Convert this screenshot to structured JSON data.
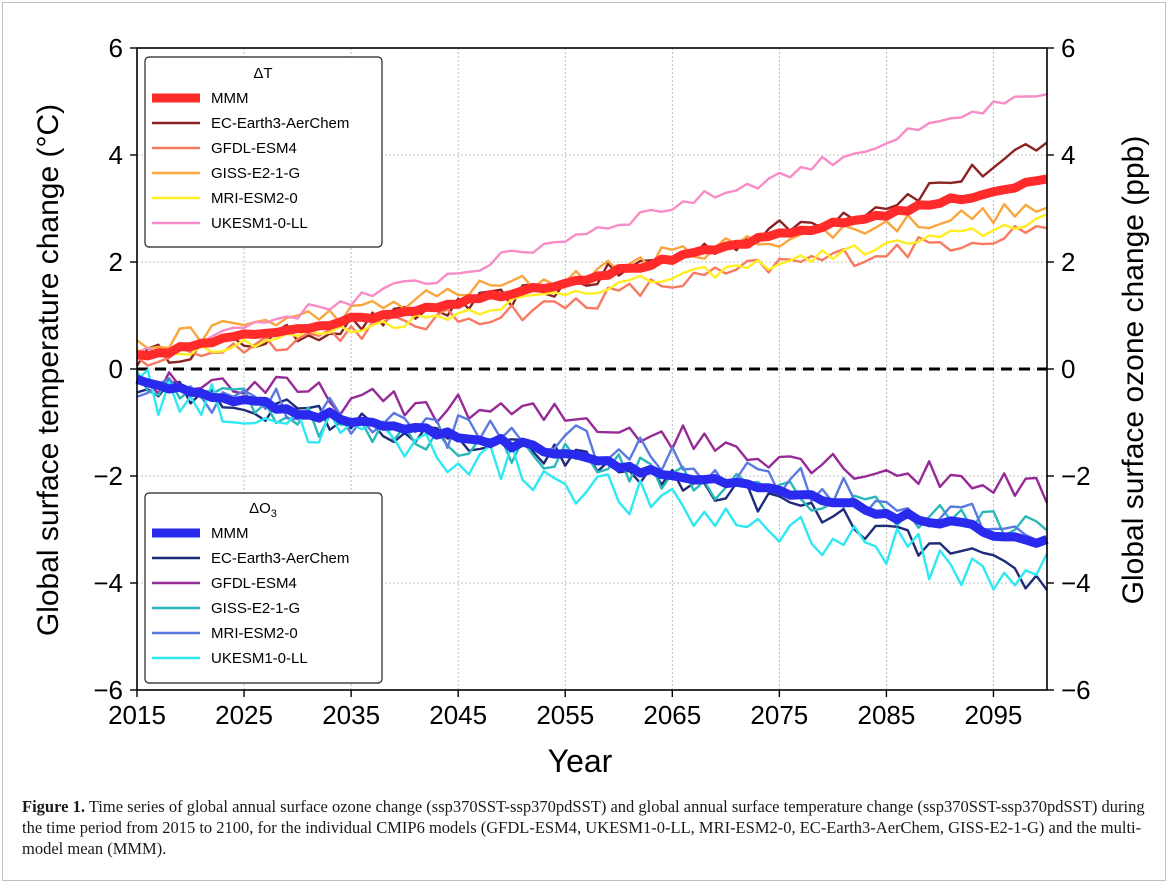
{
  "caption": {
    "label": "Figure 1.",
    "text": "Time series of global annual surface ozone change (ssp370SST-ssp370pdSST) and global annual surface temperature change (ssp370SST-ssp370pdSST) during the time period from 2015 to 2100, for the individual CMIP6 models (GFDL-ESM4, UKESM1-0-LL, MRI-ESM2-0, EC-Earth3-AerChem, GISS-E2-1-G) and the multi-model mean (MMM)."
  },
  "chart_data": {
    "type": "line",
    "xlabel": "Year",
    "ylabel_left": "Global surface temperature change (°C)",
    "ylabel_right": "Global surface ozone change (ppb)",
    "xlim": [
      2015,
      2100
    ],
    "ylim": [
      -6,
      6
    ],
    "x_ticks": [
      2015,
      2025,
      2035,
      2045,
      2055,
      2065,
      2075,
      2085,
      2095
    ],
    "y_ticks": [
      -6,
      -4,
      -2,
      0,
      2,
      4,
      6
    ],
    "grid": true,
    "zero_line": "dashed",
    "legend_temp": {
      "title": "ΔT",
      "placement": "upper-left",
      "series": [
        {
          "name": "MMM",
          "color": "#ff2a2a",
          "width": 9
        },
        {
          "name": "EC-Earth3-AerChem",
          "color": "#8b2323",
          "width": 2.4
        },
        {
          "name": "GFDL-ESM4",
          "color": "#f77a62",
          "width": 2.4
        },
        {
          "name": "GISS-E2-1-G",
          "color": "#f9a63c",
          "width": 2.4
        },
        {
          "name": "MRI-ESM2-0",
          "color": "#ffee22",
          "width": 2.4
        },
        {
          "name": "UKESM1-0-LL",
          "color": "#f78cc6",
          "width": 2.4
        }
      ]
    },
    "legend_ozone": {
      "title_main": "ΔO",
      "title_sub": "3",
      "placement": "lower-left",
      "series": [
        {
          "name": "MMM",
          "color": "#2a2aee",
          "width": 9
        },
        {
          "name": "EC-Earth3-AerChem",
          "color": "#1f2a78",
          "width": 2.4
        },
        {
          "name": "GFDL-ESM4",
          "color": "#962a96",
          "width": 2.4
        },
        {
          "name": "GISS-E2-1-G",
          "color": "#2ab8b8",
          "width": 2.4
        },
        {
          "name": "MRI-ESM2-0",
          "color": "#5a7ae0",
          "width": 2.4
        },
        {
          "name": "UKESM1-0-LL",
          "color": "#2ee8f2",
          "width": 2.4
        }
      ]
    },
    "series_anchors": {
      "temp": {
        "MMM": [
          [
            2015,
            0.22
          ],
          [
            2025,
            0.62
          ],
          [
            2035,
            0.92
          ],
          [
            2045,
            1.25
          ],
          [
            2055,
            1.62
          ],
          [
            2065,
            2.05
          ],
          [
            2075,
            2.5
          ],
          [
            2085,
            2.9
          ],
          [
            2095,
            3.32
          ],
          [
            2100,
            3.55
          ]
        ],
        "EC-Earth3-AerChem": [
          [
            2015,
            0.22
          ],
          [
            2025,
            0.5
          ],
          [
            2035,
            0.82
          ],
          [
            2045,
            1.15
          ],
          [
            2055,
            1.55
          ],
          [
            2065,
            2.1
          ],
          [
            2075,
            2.6
          ],
          [
            2085,
            3.1
          ],
          [
            2095,
            3.8
          ],
          [
            2100,
            4.15
          ]
        ],
        "GFDL-ESM4": [
          [
            2015,
            0.15
          ],
          [
            2025,
            0.45
          ],
          [
            2035,
            0.72
          ],
          [
            2045,
            0.95
          ],
          [
            2055,
            1.2
          ],
          [
            2065,
            1.6
          ],
          [
            2075,
            1.95
          ],
          [
            2085,
            2.2
          ],
          [
            2095,
            2.5
          ],
          [
            2100,
            2.7
          ]
        ],
        "GISS-E2-1-G": [
          [
            2015,
            0.4
          ],
          [
            2025,
            0.85
          ],
          [
            2035,
            1.05
          ],
          [
            2045,
            1.45
          ],
          [
            2055,
            1.7
          ],
          [
            2065,
            2.15
          ],
          [
            2075,
            2.45
          ],
          [
            2085,
            2.7
          ],
          [
            2095,
            2.9
          ],
          [
            2100,
            3.0
          ]
        ],
        "MRI-ESM2-0": [
          [
            2015,
            0.25
          ],
          [
            2025,
            0.5
          ],
          [
            2035,
            0.75
          ],
          [
            2045,
            1.05
          ],
          [
            2055,
            1.45
          ],
          [
            2065,
            1.7
          ],
          [
            2075,
            2.0
          ],
          [
            2085,
            2.3
          ],
          [
            2095,
            2.6
          ],
          [
            2100,
            2.85
          ]
        ],
        "UKESM1-0-LL": [
          [
            2015,
            0.22
          ],
          [
            2025,
            0.8
          ],
          [
            2035,
            1.3
          ],
          [
            2045,
            1.8
          ],
          [
            2055,
            2.45
          ],
          [
            2065,
            3.05
          ],
          [
            2075,
            3.6
          ],
          [
            2085,
            4.25
          ],
          [
            2095,
            4.9
          ],
          [
            2100,
            5.1
          ]
        ]
      },
      "ozone": {
        "MMM": [
          [
            2015,
            -0.25
          ],
          [
            2025,
            -0.6
          ],
          [
            2035,
            -0.95
          ],
          [
            2045,
            -1.25
          ],
          [
            2055,
            -1.55
          ],
          [
            2065,
            -2.0
          ],
          [
            2075,
            -2.3
          ],
          [
            2085,
            -2.7
          ],
          [
            2095,
            -3.05
          ],
          [
            2100,
            -3.25
          ]
        ],
        "EC-Earth3-AerChem": [
          [
            2015,
            -0.35
          ],
          [
            2025,
            -0.65
          ],
          [
            2035,
            -1.0
          ],
          [
            2045,
            -1.4
          ],
          [
            2055,
            -1.65
          ],
          [
            2065,
            -2.1
          ],
          [
            2075,
            -2.5
          ],
          [
            2085,
            -3.1
          ],
          [
            2095,
            -3.7
          ],
          [
            2100,
            -4.05
          ]
        ],
        "GFDL-ESM4": [
          [
            2015,
            -0.2
          ],
          [
            2025,
            -0.3
          ],
          [
            2035,
            -0.6
          ],
          [
            2045,
            -0.75
          ],
          [
            2055,
            -0.9
          ],
          [
            2065,
            -1.25
          ],
          [
            2075,
            -1.6
          ],
          [
            2085,
            -1.9
          ],
          [
            2095,
            -2.1
          ],
          [
            2100,
            -2.35
          ]
        ],
        "GISS-E2-1-G": [
          [
            2015,
            -0.2
          ],
          [
            2025,
            -0.55
          ],
          [
            2035,
            -1.15
          ],
          [
            2045,
            -1.35
          ],
          [
            2055,
            -1.65
          ],
          [
            2065,
            -2.0
          ],
          [
            2075,
            -2.35
          ],
          [
            2085,
            -2.6
          ],
          [
            2095,
            -2.9
          ],
          [
            2100,
            -3.1
          ]
        ],
        "MRI-ESM2-0": [
          [
            2015,
            -0.3
          ],
          [
            2025,
            -0.55
          ],
          [
            2035,
            -0.95
          ],
          [
            2045,
            -1.15
          ],
          [
            2055,
            -1.35
          ],
          [
            2065,
            -1.75
          ],
          [
            2075,
            -2.0
          ],
          [
            2085,
            -2.5
          ],
          [
            2095,
            -2.95
          ],
          [
            2100,
            -3.1
          ]
        ],
        "UKESM1-0-LL": [
          [
            2015,
            -0.35
          ],
          [
            2025,
            -0.8
          ],
          [
            2035,
            -1.2
          ],
          [
            2045,
            -1.6
          ],
          [
            2055,
            -2.05
          ],
          [
            2065,
            -2.65
          ],
          [
            2075,
            -2.95
          ],
          [
            2085,
            -3.3
          ],
          [
            2095,
            -3.9
          ],
          [
            2100,
            -3.55
          ]
        ]
      }
    },
    "noise_amplitude": {
      "temp": {
        "MMM": 0.05,
        "EC-Earth3-AerChem": 0.2,
        "GFDL-ESM4": 0.2,
        "GISS-E2-1-G": 0.18,
        "MRI-ESM2-0": 0.12,
        "UKESM1-0-LL": 0.12
      },
      "ozone": {
        "MMM": 0.08,
        "EC-Earth3-AerChem": 0.25,
        "GFDL-ESM4": 0.28,
        "GISS-E2-1-G": 0.3,
        "MRI-ESM2-0": 0.35,
        "UKESM1-0-LL": 0.42
      }
    }
  }
}
